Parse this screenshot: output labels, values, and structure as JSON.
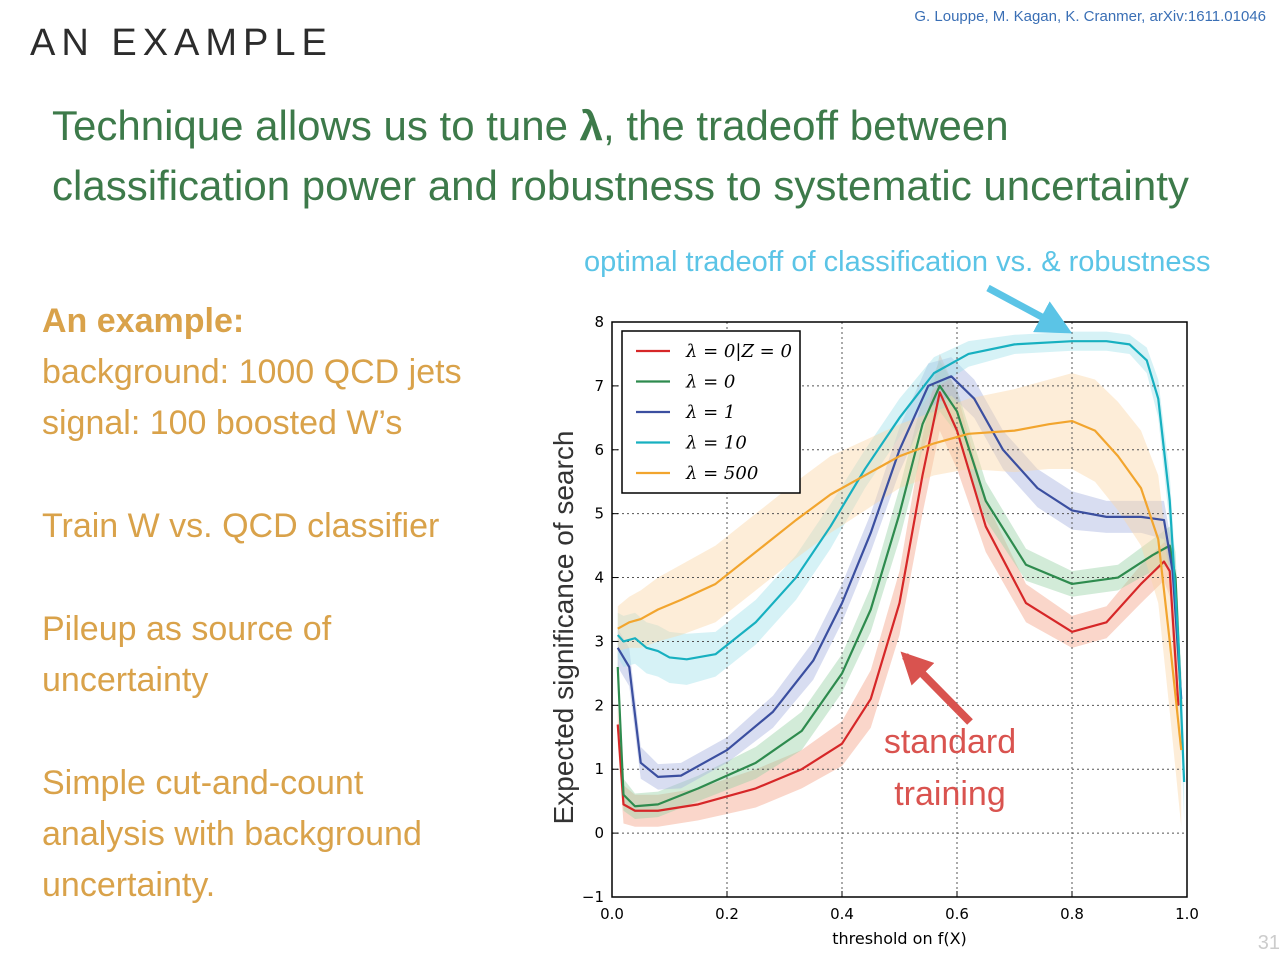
{
  "slide": {
    "section_title": "AN EXAMPLE",
    "citation": "G. Louppe, M. Kagan, K. Cranmer, arXiv:1611.01046",
    "headline_part1": "Technique allows us to tune ",
    "headline_lambda": "λ",
    "headline_part2": ", the tradeoff between",
    "headline_line2": "classification power and robustness to systematic uncertainty",
    "annotation_top": "optimal tradeoff of classification vs. & robustness",
    "annotation_standard_line1": "standard",
    "annotation_standard_line2": "training",
    "page_number": "31",
    "side_text": {
      "heading": "An example:",
      "line1": "background: 1000 QCD jets",
      "line2": "signal: 100 boosted W’s",
      "line3": "Train W vs. QCD classifier",
      "line4a": "Pileup as source of",
      "line4b": "uncertainty",
      "line5a": "Simple cut-and-count",
      "line5b": "analysis with background",
      "line5c": "uncertainty."
    },
    "colors": {
      "headline": "#3d7a4a",
      "side_text": "#d9a24a",
      "annotation_top": "#5bc4e6",
      "annotation_standard": "#d9534f"
    }
  },
  "chart_data": {
    "type": "line",
    "xlabel": "threshold on f(X)",
    "ylabel": "Expected significance of search",
    "xlim": [
      0.0,
      1.0
    ],
    "ylim": [
      -1,
      8
    ],
    "xticks": [
      "0.0",
      "0.2",
      "0.4",
      "0.6",
      "0.8",
      "1.0"
    ],
    "xtick_values": [
      0.0,
      0.2,
      0.4,
      0.6,
      0.8,
      1.0
    ],
    "yticks": [
      "−1",
      "0",
      "1",
      "2",
      "3",
      "4",
      "5",
      "6",
      "7",
      "8"
    ],
    "ytick_values": [
      -1,
      0,
      1,
      2,
      3,
      4,
      5,
      6,
      7,
      8
    ],
    "grid": true,
    "legend_position": "top-left",
    "series": [
      {
        "name": "λ = 0|Z = 0",
        "color": "#d62728",
        "x": [
          0.01,
          0.02,
          0.04,
          0.08,
          0.15,
          0.25,
          0.33,
          0.4,
          0.45,
          0.5,
          0.54,
          0.57,
          0.6,
          0.65,
          0.72,
          0.8,
          0.86,
          0.92,
          0.96,
          0.97,
          0.985
        ],
        "y": [
          1.7,
          0.45,
          0.35,
          0.35,
          0.45,
          0.7,
          1.0,
          1.4,
          2.1,
          3.6,
          5.6,
          6.9,
          6.3,
          4.8,
          3.6,
          3.15,
          3.3,
          3.9,
          4.25,
          4.1,
          2.0
        ],
        "band_color": "#f4a58a",
        "band": [
          0.3,
          0.3,
          0.25,
          0.25,
          0.25,
          0.3,
          0.3,
          0.35,
          0.45,
          0.5,
          0.6,
          0.6,
          0.6,
          0.4,
          0.3,
          0.25,
          0.25,
          0.3,
          0.3,
          0.4,
          0.5
        ]
      },
      {
        "name": "λ = 0",
        "color": "#2e8b4e",
        "x": [
          0.01,
          0.02,
          0.04,
          0.08,
          0.15,
          0.25,
          0.33,
          0.4,
          0.45,
          0.5,
          0.54,
          0.57,
          0.6,
          0.65,
          0.72,
          0.8,
          0.88,
          0.94,
          0.97,
          0.98,
          0.99
        ],
        "y": [
          2.6,
          0.6,
          0.42,
          0.45,
          0.7,
          1.1,
          1.6,
          2.5,
          3.5,
          5.0,
          6.4,
          7.0,
          6.6,
          5.2,
          4.2,
          3.9,
          4.0,
          4.35,
          4.5,
          4.0,
          2.0
        ],
        "band_color": "#9bd3a8",
        "band": [
          0.3,
          0.25,
          0.2,
          0.2,
          0.2,
          0.25,
          0.3,
          0.3,
          0.35,
          0.4,
          0.4,
          0.4,
          0.35,
          0.3,
          0.25,
          0.2,
          0.2,
          0.25,
          0.3,
          0.4,
          0.5
        ]
      },
      {
        "name": "λ = 1",
        "color": "#3b4fa0",
        "x": [
          0.01,
          0.03,
          0.05,
          0.08,
          0.12,
          0.2,
          0.28,
          0.35,
          0.4,
          0.45,
          0.5,
          0.55,
          0.59,
          0.63,
          0.68,
          0.74,
          0.8,
          0.86,
          0.92,
          0.96,
          0.975,
          0.99
        ],
        "y": [
          2.9,
          2.6,
          1.1,
          0.88,
          0.9,
          1.3,
          1.9,
          2.7,
          3.6,
          4.7,
          6.0,
          7.0,
          7.15,
          6.8,
          6.0,
          5.4,
          5.05,
          4.95,
          4.95,
          4.9,
          4.1,
          2.1
        ],
        "band_color": "#a9b4e0",
        "band": [
          0.3,
          0.3,
          0.25,
          0.2,
          0.2,
          0.2,
          0.25,
          0.3,
          0.3,
          0.3,
          0.35,
          0.35,
          0.3,
          0.3,
          0.3,
          0.3,
          0.3,
          0.25,
          0.25,
          0.3,
          0.35,
          0.4
        ]
      },
      {
        "name": "λ = 10",
        "color": "#17b0c0",
        "x": [
          0.01,
          0.02,
          0.04,
          0.06,
          0.08,
          0.1,
          0.13,
          0.18,
          0.25,
          0.32,
          0.38,
          0.44,
          0.5,
          0.56,
          0.62,
          0.7,
          0.8,
          0.86,
          0.9,
          0.93,
          0.95,
          0.97,
          0.985,
          0.995
        ],
        "y": [
          3.1,
          3.0,
          3.05,
          2.9,
          2.85,
          2.75,
          2.72,
          2.8,
          3.3,
          4.0,
          4.8,
          5.7,
          6.5,
          7.2,
          7.5,
          7.65,
          7.7,
          7.7,
          7.65,
          7.4,
          6.8,
          5.2,
          3.0,
          0.8
        ],
        "band_color": "#a3e3ea",
        "band": [
          0.35,
          0.4,
          0.4,
          0.4,
          0.4,
          0.4,
          0.4,
          0.35,
          0.35,
          0.35,
          0.35,
          0.3,
          0.3,
          0.25,
          0.2,
          0.15,
          0.15,
          0.15,
          0.15,
          0.2,
          0.3,
          0.4,
          0.5,
          0.6
        ]
      },
      {
        "name": "λ = 500",
        "color": "#f2a52e",
        "x": [
          0.01,
          0.03,
          0.05,
          0.08,
          0.12,
          0.18,
          0.25,
          0.32,
          0.38,
          0.44,
          0.5,
          0.56,
          0.62,
          0.7,
          0.76,
          0.8,
          0.84,
          0.88,
          0.92,
          0.95,
          0.97,
          0.99
        ],
        "y": [
          3.2,
          3.3,
          3.35,
          3.5,
          3.65,
          3.9,
          4.4,
          4.9,
          5.3,
          5.6,
          5.9,
          6.1,
          6.25,
          6.3,
          6.4,
          6.45,
          6.3,
          5.9,
          5.4,
          4.6,
          3.0,
          1.3
        ],
        "band_color": "#fbd8a8",
        "band": [
          0.35,
          0.4,
          0.45,
          0.5,
          0.55,
          0.6,
          0.6,
          0.6,
          0.6,
          0.55,
          0.5,
          0.5,
          0.55,
          0.65,
          0.7,
          0.75,
          0.8,
          0.85,
          0.9,
          1.0,
          1.1,
          1.2
        ]
      }
    ]
  }
}
